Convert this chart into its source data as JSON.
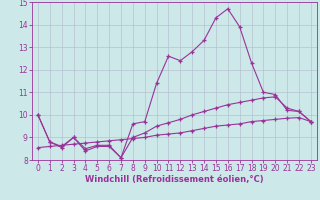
{
  "xlabel": "Windchill (Refroidissement éolien,°C)",
  "ylabel": "",
  "x_values": [
    0,
    1,
    2,
    3,
    4,
    5,
    6,
    7,
    8,
    9,
    10,
    11,
    12,
    13,
    14,
    15,
    16,
    17,
    18,
    19,
    20,
    21,
    22,
    23
  ],
  "line1": [
    10.0,
    8.8,
    8.6,
    9.0,
    8.4,
    8.6,
    8.6,
    8.1,
    9.6,
    9.7,
    11.4,
    12.6,
    12.4,
    12.8,
    13.3,
    14.3,
    14.7,
    13.9,
    12.3,
    11.0,
    10.9,
    10.2,
    10.15,
    9.7
  ],
  "line2": [
    10.0,
    8.8,
    8.55,
    9.0,
    8.5,
    8.65,
    8.65,
    8.1,
    9.0,
    9.2,
    9.5,
    9.65,
    9.8,
    10.0,
    10.15,
    10.3,
    10.45,
    10.55,
    10.65,
    10.75,
    10.8,
    10.3,
    10.15,
    9.7
  ],
  "line3": [
    8.55,
    8.6,
    8.65,
    8.7,
    8.75,
    8.8,
    8.85,
    8.9,
    8.95,
    9.0,
    9.1,
    9.15,
    9.2,
    9.3,
    9.4,
    9.5,
    9.55,
    9.6,
    9.7,
    9.75,
    9.8,
    9.85,
    9.88,
    9.7
  ],
  "ylim": [
    8.0,
    15.0
  ],
  "xlim_min": -0.5,
  "xlim_max": 23.5,
  "yticks": [
    8,
    9,
    10,
    11,
    12,
    13,
    14,
    15
  ],
  "xticks": [
    0,
    1,
    2,
    3,
    4,
    5,
    6,
    7,
    8,
    9,
    10,
    11,
    12,
    13,
    14,
    15,
    16,
    17,
    18,
    19,
    20,
    21,
    22,
    23
  ],
  "line_color": "#993399",
  "bg_color": "#cce8e8",
  "grid_color": "#b0b8cc",
  "marker": "+",
  "marker_size": 3,
  "linewidth": 0.8,
  "tick_fontsize": 5.5,
  "xlabel_fontsize": 6.0
}
